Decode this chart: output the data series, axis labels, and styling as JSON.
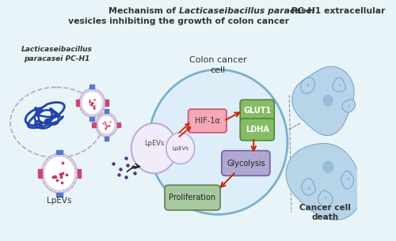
{
  "bg_color": "#e8f4f8",
  "title_fontsize": 7.8,
  "bacteria_label_italic": "Lacticaseibacillus\nparacasei PC-H1",
  "lpevs_label": "LpEVs",
  "colon_cancer_label": "Colon cancer\ncell",
  "hif_label": "HIF-1α",
  "glut1_label": "GLUT1",
  "ldha_label": "LDHA",
  "glycolysis_label": "Glycolysis",
  "proliferation_label": "Proliferation",
  "cancer_death_label": "Cancer cell\ndeath",
  "hif_fill": "#f4a7b5",
  "hif_edge": "#d05070",
  "glut1_fill": "#88bb66",
  "glut1_edge": "#4a8a30",
  "ldha_fill": "#88bb66",
  "ldha_edge": "#4a8a30",
  "glycolysis_fill": "#b0a8d0",
  "glycolysis_edge": "#7060a0",
  "prolif_fill": "#a8c8a0",
  "prolif_edge": "#608050",
  "lpev_large_outer": "#c0b0d0",
  "lpev_large_fill": "#f0ecf8",
  "lpev_dot": "#cc3366",
  "lpev_spike_pink": "#cc6688",
  "lpev_spike_blue": "#6688cc",
  "cell_fill": "#ddeef8",
  "cell_edge": "#7ab0cc",
  "bacteria_color": "#2244aa",
  "dashed_ellipse_color": "#c0a0d0",
  "scatter_dot_color": "#553388",
  "arrow_color": "#cc2200",
  "arrow_black": "#222222"
}
